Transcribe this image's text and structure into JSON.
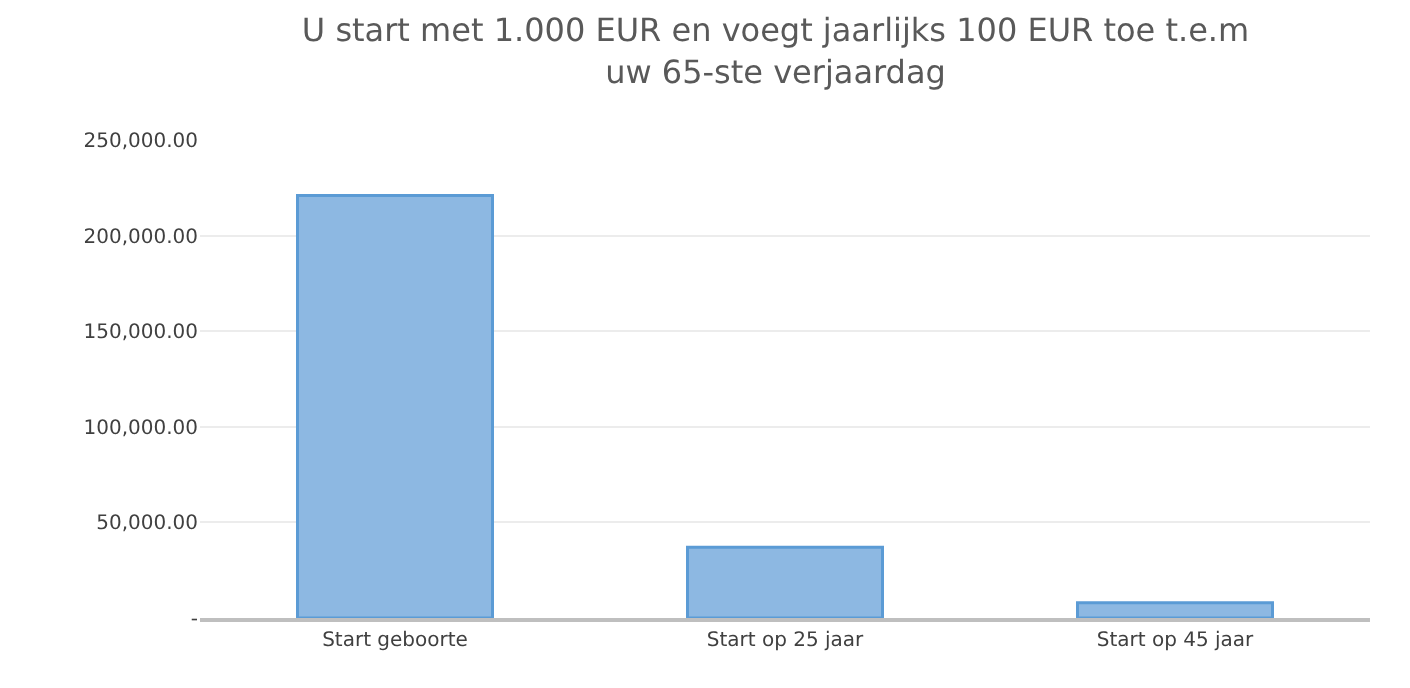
{
  "chart_data": {
    "type": "bar",
    "title": "U start met 1.000 EUR en voegt jaarlijks 100 EUR toe t.e.m\nuw 65-ste verjaardag",
    "categories": [
      "Start geboorte",
      "Start op 25 jaar",
      "Start op 45 jaar"
    ],
    "values": [
      221000,
      37000,
      8000
    ],
    "color": "#8db8e2",
    "ylim": [
      0,
      250000
    ],
    "yticks": [
      {
        "value": 0,
        "label": "-"
      },
      {
        "value": 50000,
        "label": "50,000.00"
      },
      {
        "value": 100000,
        "label": "100,000.00"
      },
      {
        "value": 150000,
        "label": "150,000.00"
      },
      {
        "value": 200000,
        "label": "200,000.00"
      },
      {
        "value": 250000,
        "label": "250,000.00"
      }
    ],
    "grid": "y",
    "legend": false
  }
}
